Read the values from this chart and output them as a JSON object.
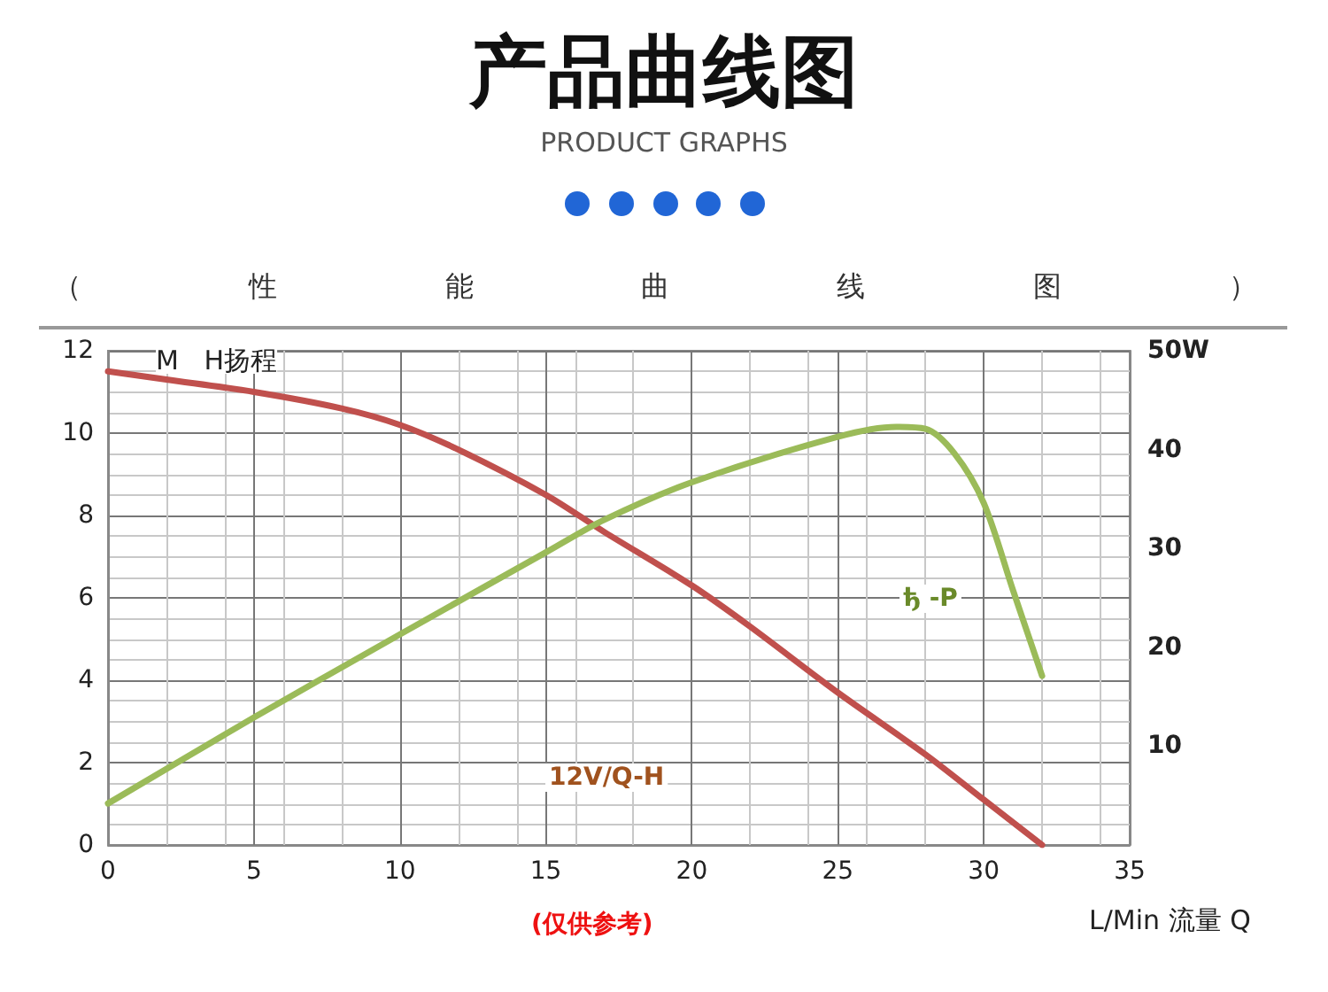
{
  "chart_data": {
    "type": "line",
    "title": "产品曲线图",
    "subtitle": "PRODUCT GRAPHS",
    "xlabel": "L/Min 流量 Q",
    "ylabel": "M   H扬程",
    "annotations": [
      "（性能曲线图）",
      "ђ -P",
      "12V/Q-H",
      "(仅供参考)"
    ],
    "xlim": [
      0,
      35
    ],
    "xticks": [
      0,
      5,
      10,
      15,
      20,
      25,
      30,
      35
    ],
    "ylim": [
      0,
      12
    ],
    "yticks": [
      0,
      2,
      4,
      6,
      8,
      10,
      12
    ],
    "y2lim": [
      0,
      50
    ],
    "y2ticks": [
      10,
      20,
      30,
      40,
      {
        "value": 50,
        "label": "50W"
      }
    ],
    "grid": true,
    "marker": "none",
    "line_style": "solid",
    "series": [
      {
        "color": "#c0504d",
        "x": [
          0,
          2,
          5,
          8,
          10,
          12,
          15,
          17,
          20,
          22,
          25,
          28,
          30,
          32
        ],
        "values": [
          11.5,
          11.3,
          11.0,
          10.6,
          10.2,
          9.6,
          8.5,
          7.6,
          6.3,
          5.3,
          3.7,
          2.2,
          1.1,
          0
        ]
      },
      {
        "color": "#9bbb59",
        "axis": "y2",
        "x": [
          0,
          5,
          10,
          15,
          17,
          20,
          25,
          27,
          28,
          29,
          30,
          31,
          32
        ],
        "values": [
          4.2,
          12.9,
          21.3,
          29.6,
          32.9,
          36.7,
          41.3,
          42.3,
          42.1,
          39.6,
          34.6,
          25.8,
          17.1
        ]
      }
    ]
  }
}
